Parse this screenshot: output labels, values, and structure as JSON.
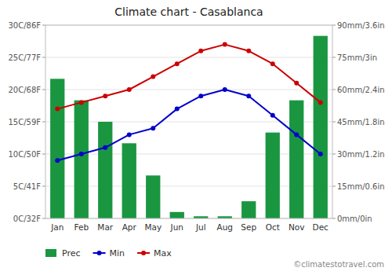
{
  "chart_data": {
    "type": "bar",
    "title": "Climate chart - Casablanca",
    "categories": [
      "Jan",
      "Feb",
      "Mar",
      "Apr",
      "May",
      "Jun",
      "Jul",
      "Aug",
      "Sep",
      "Oct",
      "Nov",
      "Dec"
    ],
    "series": [
      {
        "name": "Prec",
        "type": "bar",
        "axis": "y2",
        "color": "#1a9641",
        "values": [
          65,
          55,
          45,
          35,
          20,
          3,
          1,
          1,
          8,
          40,
          55,
          85
        ]
      },
      {
        "name": "Min",
        "type": "line",
        "marker": "circle",
        "color": "#0000cc",
        "values": [
          9,
          10,
          11,
          13,
          14,
          17,
          19,
          20,
          19,
          16,
          13,
          10
        ]
      },
      {
        "name": "Max",
        "type": "line",
        "marker": "circle",
        "color": "#cc0000",
        "values": [
          17,
          18,
          19,
          20,
          22,
          24,
          26,
          27,
          26,
          24,
          21,
          18
        ]
      }
    ],
    "ylim": [
      0,
      30
    ],
    "yticks": [
      {
        "value": 0,
        "label": "0C/32F"
      },
      {
        "value": 5,
        "label": "5C/41F"
      },
      {
        "value": 10,
        "label": "10C/50F"
      },
      {
        "value": 15,
        "label": "15C/59F"
      },
      {
        "value": 20,
        "label": "20C/68F"
      },
      {
        "value": 25,
        "label": "25C/77F"
      },
      {
        "value": 30,
        "label": "30C/86F"
      }
    ],
    "y2lim": [
      0,
      90
    ],
    "y2ticks": [
      {
        "value": 0,
        "label": "0mm/0in"
      },
      {
        "value": 15,
        "label": "15mm/0.6in"
      },
      {
        "value": 30,
        "label": "30mm/1.2in"
      },
      {
        "value": 45,
        "label": "45mm/1.8in"
      },
      {
        "value": 60,
        "label": "60mm/2.4in"
      },
      {
        "value": 75,
        "label": "75mm/3in"
      },
      {
        "value": 90,
        "label": "90mm/3.6in"
      }
    ],
    "grid": true,
    "legend": "bottom",
    "annotations": [
      "©climatestotravel.com"
    ]
  }
}
